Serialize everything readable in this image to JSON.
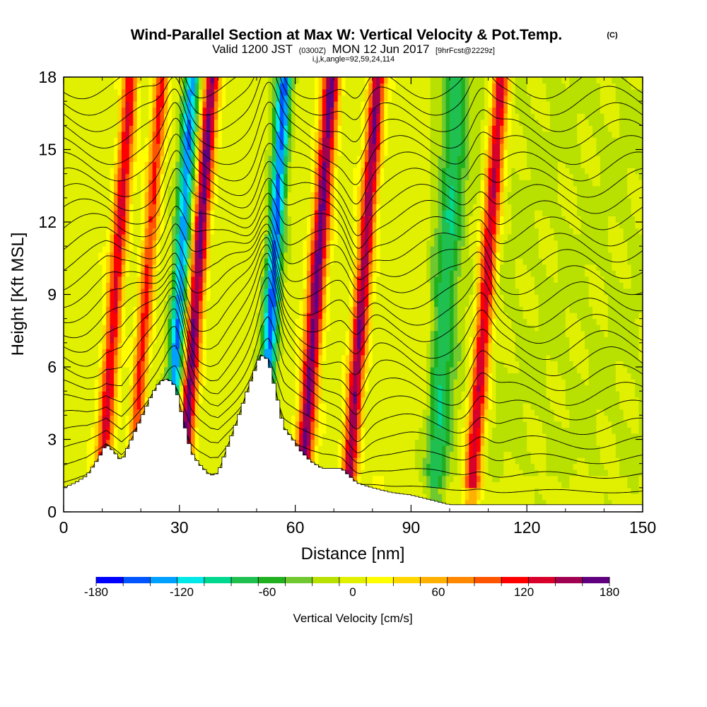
{
  "chart_data": {
    "type": "heatmap",
    "title": "Wind-Parallel Section at Max W: Vertical Velocity & Pot.Temp.",
    "title_mark": "(C)",
    "subtitle": {
      "valid_prefix": "Valid 1200 JST",
      "zulu": "(0300Z)",
      "date": "MON 12 Jun 2017",
      "forecast": "[9hrFcst@2229z]"
    },
    "subtitle2": "i,j,k,angle=92,59,24,114",
    "xlabel": "Distance [nm]",
    "ylabel": "Height [Kft MSL]",
    "xlim": [
      0,
      150
    ],
    "ylim": [
      0,
      18
    ],
    "xticks": [
      "0",
      "30",
      "60",
      "90",
      "120",
      "150"
    ],
    "yticks": [
      "0",
      "3",
      "6",
      "9",
      "12",
      "15",
      "18"
    ],
    "x_tick_values": [
      0,
      30,
      60,
      90,
      120,
      150
    ],
    "y_tick_values": [
      0,
      3,
      6,
      9,
      12,
      15,
      18
    ],
    "colorbar": {
      "label": "Vertical Velocity [cm/s]",
      "ticks": [
        "-180",
        "-120",
        "-60",
        "0",
        "60",
        "120",
        "180"
      ],
      "range": [
        -180,
        180
      ],
      "colors": [
        "#0000ff",
        "#0055ff",
        "#00a0ff",
        "#00e8e8",
        "#00d890",
        "#20c050",
        "#20b020",
        "#70c830",
        "#b8e000",
        "#e0f000",
        "#ffff00",
        "#ffd700",
        "#ffb000",
        "#ff8800",
        "#ff5500",
        "#ff0000",
        "#d8002a",
        "#a00050",
        "#600080"
      ]
    },
    "updraft_columns": [
      {
        "x": 12,
        "w": 130,
        "width_nm": 2.0
      },
      {
        "x": 20,
        "w": 110,
        "width_nm": 1.8
      },
      {
        "x": 33,
        "w": 170,
        "width_nm": 2.0
      },
      {
        "x": 64,
        "w": 170,
        "width_nm": 2.2
      },
      {
        "x": 76,
        "w": 160,
        "width_nm": 2.0
      },
      {
        "x": 108,
        "w": 150,
        "width_nm": 2.2
      }
    ],
    "downdraft_columns": [
      {
        "x": 29,
        "w": -140,
        "width_nm": 2.0
      },
      {
        "x": 53,
        "w": -150,
        "width_nm": 2.0
      },
      {
        "x": 98,
        "w": -70,
        "width_nm": 3.0
      }
    ],
    "terrain": [
      {
        "x": 0,
        "h": 1.0
      },
      {
        "x": 3,
        "h": 1.2
      },
      {
        "x": 6,
        "h": 1.5
      },
      {
        "x": 9,
        "h": 2.2
      },
      {
        "x": 11,
        "h": 2.8
      },
      {
        "x": 13,
        "h": 2.5
      },
      {
        "x": 15,
        "h": 2.1
      },
      {
        "x": 17,
        "h": 2.8
      },
      {
        "x": 19,
        "h": 3.5
      },
      {
        "x": 21,
        "h": 4.2
      },
      {
        "x": 23,
        "h": 4.9
      },
      {
        "x": 25,
        "h": 5.4
      },
      {
        "x": 27,
        "h": 5.5
      },
      {
        "x": 29,
        "h": 5.2
      },
      {
        "x": 31,
        "h": 3.8
      },
      {
        "x": 33,
        "h": 2.5
      },
      {
        "x": 35,
        "h": 2.0
      },
      {
        "x": 38,
        "h": 1.5
      },
      {
        "x": 40,
        "h": 1.6
      },
      {
        "x": 42,
        "h": 2.5
      },
      {
        "x": 45,
        "h": 3.8
      },
      {
        "x": 48,
        "h": 5.2
      },
      {
        "x": 51,
        "h": 6.5
      },
      {
        "x": 53,
        "h": 6.3
      },
      {
        "x": 55,
        "h": 5.0
      },
      {
        "x": 57,
        "h": 3.5
      },
      {
        "x": 59,
        "h": 3.1
      },
      {
        "x": 61,
        "h": 2.6
      },
      {
        "x": 64,
        "h": 2.1
      },
      {
        "x": 67,
        "h": 1.8
      },
      {
        "x": 72,
        "h": 1.8
      },
      {
        "x": 76,
        "h": 1.2
      },
      {
        "x": 80,
        "h": 1.0
      },
      {
        "x": 85,
        "h": 0.8
      },
      {
        "x": 90,
        "h": 0.7
      },
      {
        "x": 95,
        "h": 0.5
      },
      {
        "x": 100,
        "h": 0.3
      },
      {
        "x": 150,
        "h": 0.3
      }
    ],
    "theta_contour_count": 26
  }
}
